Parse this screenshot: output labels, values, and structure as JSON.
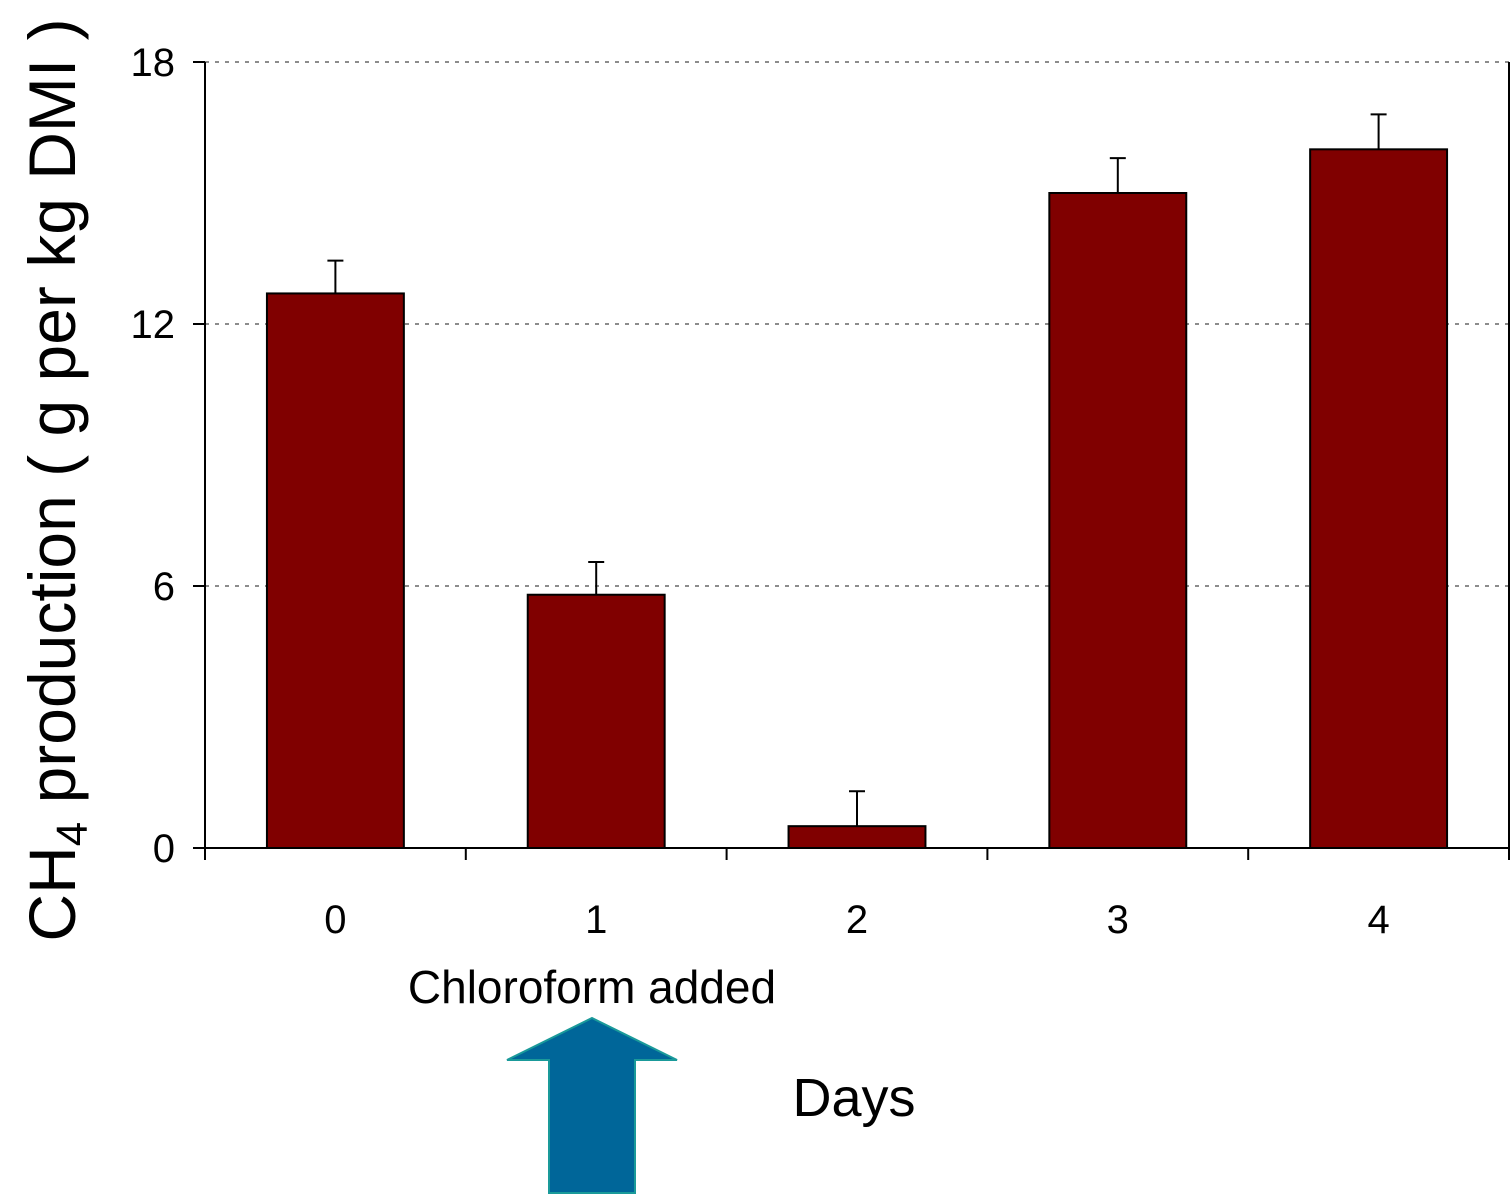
{
  "chart_data": {
    "type": "bar",
    "categories": [
      "0",
      "1",
      "2",
      "3",
      "4"
    ],
    "values": [
      12.7,
      5.8,
      0.5,
      15.0,
      16.0
    ],
    "error_bars": [
      0.75,
      0.75,
      0.8,
      0.8,
      0.8
    ],
    "ylim": [
      0,
      18
    ],
    "yticks": [
      "0",
      "6",
      "12",
      "18"
    ],
    "ytick_values": [
      0,
      6,
      12,
      18
    ],
    "ylabel_main": "CH",
    "ylabel_sub": "4",
    "ylabel_rest": " production ( g per kg DMI )",
    "xlabel": "Days",
    "annotation": "Chloroform added",
    "annotation_category": "1",
    "grid": "horizontal dotted",
    "bar_color": "#800000",
    "arrow_color": "#006699",
    "arrow_edge_color": "#1a9a9a"
  }
}
